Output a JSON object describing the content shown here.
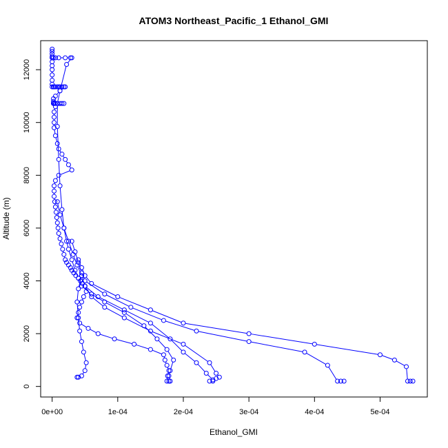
{
  "chart_data": {
    "type": "line",
    "title": "ATOM3 Northeast_Pacific_1 Ethanol_GMI",
    "xlabel": "Ethanol_GMI",
    "ylabel": "Altitude (m)",
    "xlim": [
      -1.75e-05,
      0.000572
    ],
    "ylim": [
      -400,
      13100
    ],
    "x_ticks": [
      {
        "value": 0,
        "label": "0e+00"
      },
      {
        "value": 0.0001,
        "label": "1e-04"
      },
      {
        "value": 0.0002,
        "label": "2e-04"
      },
      {
        "value": 0.0003,
        "label": "3e-04"
      },
      {
        "value": 0.0004,
        "label": "4e-04"
      },
      {
        "value": 0.0005,
        "label": "5e-04"
      }
    ],
    "y_ticks": [
      {
        "value": 0,
        "label": "0"
      },
      {
        "value": 2000,
        "label": "2000"
      },
      {
        "value": 4000,
        "label": "4000"
      },
      {
        "value": 6000,
        "label": "6000"
      },
      {
        "value": 8000,
        "label": "8000"
      },
      {
        "value": 10000,
        "label": "10000"
      },
      {
        "value": 12000,
        "label": "12000"
      }
    ],
    "grid": false,
    "color": "#0000ff",
    "series": [
      {
        "x": [
          0.0,
          0.0,
          0.0,
          0.0,
          0.0,
          0.0,
          0.0,
          0.0,
          0.0,
          0.0,
          0.0,
          0.0,
          2e-06,
          3e-06,
          5e-06,
          8e-06,
          1e-05,
          1.2e-05,
          1.5e-05,
          1.8e-05,
          2e-05,
          1.2e-05,
          5e-06,
          2e-06,
          2e-06,
          3e-06,
          3e-06,
          3e-06,
          2e-06,
          2e-06,
          5e-06,
          8e-06,
          1.2e-05,
          1.5e-05,
          1.8e-05,
          5e-06,
          3e-06,
          3e-06,
          3e-06,
          3e-06,
          5e-06,
          8e-06,
          1e-05,
          1.5e-05,
          2e-05,
          2.5e-05,
          3e-05,
          1e-05,
          5e-06,
          3e-06,
          3e-06,
          3e-06,
          4e-06,
          5e-06,
          6e-06,
          7e-06,
          8e-06,
          9e-06,
          1e-05,
          1.2e-05,
          1.4e-05,
          1.6e-05,
          1.8e-05,
          2e-05,
          2.2e-05,
          2.5e-05,
          2.8e-05,
          3e-05,
          3.3e-05,
          3.6e-05,
          4e-05,
          4.3e-05,
          4.6e-05,
          5e-05,
          5.2e-05,
          4.8e-05,
          4.5e-05,
          4.2e-05,
          4e-05,
          3.8e-05,
          4.2e-05,
          5.5e-05,
          7e-05,
          9.5e-05,
          0.000125,
          0.00015,
          0.00017,
          0.000172,
          0.000175,
          0.000178,
          0.000176,
          0.000175
        ],
        "y": [
          12780,
          12700,
          12600,
          12500,
          12450,
          12300,
          12150,
          12000,
          11800,
          11600,
          11450,
          11350,
          11350,
          11350,
          11350,
          11350,
          11350,
          11350,
          11350,
          11350,
          11350,
          11200,
          11000,
          10900,
          10800,
          10750,
          10720,
          10720,
          10720,
          10720,
          10720,
          10720,
          10720,
          10720,
          10720,
          10600,
          10400,
          10200,
          10000,
          9800,
          9500,
          9200,
          9000,
          8800,
          8600,
          8400,
          8200,
          8000,
          7800,
          7600,
          7400,
          7200,
          7000,
          6800,
          6600,
          6400,
          6200,
          6000,
          5800,
          5600,
          5400,
          5200,
          5000,
          4800,
          4700,
          4600,
          4500,
          4400,
          4300,
          4200,
          4100,
          4000,
          3900,
          3800,
          3600,
          3400,
          3200,
          3000,
          2800,
          2600,
          2400,
          2200,
          2000,
          1800,
          1600,
          1400,
          1200,
          1000,
          800,
          600,
          400,
          200
        ]
      },
      {
        "x": [
          0.0,
          2e-06,
          5e-06,
          1e-05,
          2e-05,
          2.8e-05,
          3e-05,
          2.2e-05,
          1.2e-05,
          8e-06,
          8e-06,
          1e-05,
          1.2e-05,
          1.5e-05,
          1.8e-05,
          2.2e-05,
          2.5e-05,
          3e-05,
          3.5e-05,
          4e-05,
          4.5e-05,
          6e-05,
          8e-05,
          0.00011,
          0.00014,
          0.00016,
          0.000175,
          0.000185,
          0.00018,
          0.000178,
          0.00018,
          0.000178
        ],
        "y": [
          12450,
          12450,
          12450,
          12450,
          12450,
          12450,
          12450,
          12200,
          11200,
          10720,
          9850,
          8600,
          7600,
          6700,
          6000,
          5500,
          5200,
          4800,
          4400,
          4100,
          3800,
          3500,
          3200,
          2800,
          2300,
          1800,
          1400,
          1000,
          600,
          400,
          200,
          200
        ]
      },
      {
        "x": [
          8e-06,
          1.2e-05,
          1.8e-05,
          2.5e-05,
          3.2e-05,
          3.8e-05,
          4.5e-05,
          5e-05,
          6e-05,
          8e-05,
          0.00011,
          0.00015,
          0.0002,
          0.00024,
          0.00025,
          0.000255,
          0.00025,
          0.000245,
          0.00024
        ],
        "y": [
          7000,
          6500,
          6000,
          5500,
          5000,
          4600,
          4200,
          3800,
          3400,
          3000,
          2600,
          2100,
          1600,
          900,
          500,
          350,
          300,
          200,
          200
        ]
      },
      {
        "x": [
          3e-05,
          3.5e-05,
          4e-05,
          4.5e-05,
          5e-05,
          8e-05,
          0.00012,
          0.00017,
          0.00022,
          0.0003,
          0.000385,
          0.00042,
          0.000435,
          0.00044,
          0.000445
        ],
        "y": [
          5500,
          5100,
          4700,
          4300,
          4000,
          3500,
          3000,
          2500,
          2100,
          1700,
          1300,
          800,
          200,
          200,
          200
        ]
      },
      {
        "x": [
          4e-05,
          4.5e-05,
          5e-05,
          6e-05,
          0.0001,
          0.00015,
          0.0002,
          0.0003,
          0.0004,
          0.0005,
          0.000522,
          0.00054,
          0.000542,
          0.000546,
          0.00055
        ],
        "y": [
          4800,
          4500,
          4200,
          3900,
          3400,
          2900,
          2400,
          2000,
          1600,
          1200,
          1000,
          750,
          200,
          200,
          200
        ]
      },
      {
        "x": [
          4.5e-05,
          4e-05,
          3.8e-05,
          4e-05,
          4.2e-05,
          4.5e-05,
          4.8e-05,
          5.2e-05,
          5e-05,
          4.5e-05,
          4e-05,
          3.8e-05
        ],
        "y": [
          4200,
          3700,
          3200,
          2600,
          2100,
          1700,
          1300,
          900,
          600,
          400,
          350,
          350
        ]
      },
      {
        "x": [
          5e-05,
          7e-05,
          0.00011,
          0.00015,
          0.00018,
          0.0002,
          0.00022,
          0.000235,
          0.000245
        ],
        "y": [
          3800,
          3400,
          2900,
          2400,
          1800,
          1300,
          900,
          500,
          250
        ]
      }
    ]
  }
}
